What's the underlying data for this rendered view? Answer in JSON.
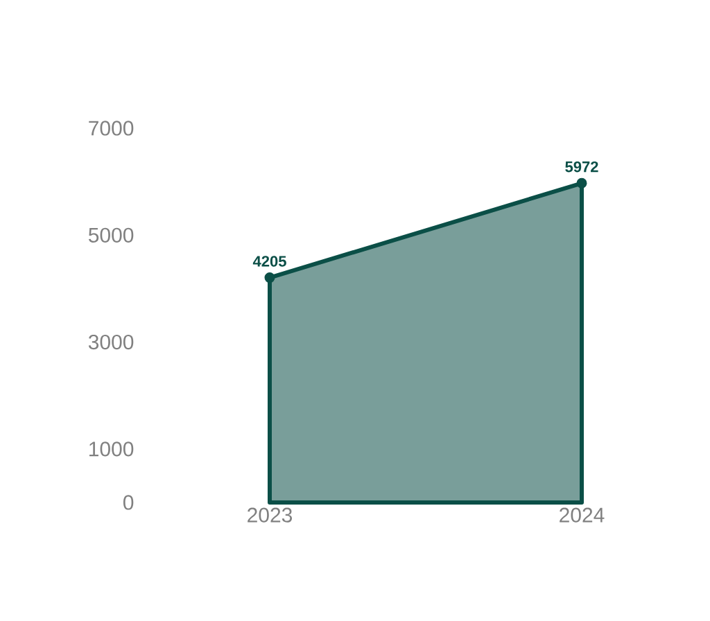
{
  "chart_data": {
    "type": "area",
    "categories": [
      "2023",
      "2024"
    ],
    "values": [
      4205,
      5972
    ],
    "color": "#0b4f47",
    "ylim": [
      0,
      7000
    ],
    "yticks": [
      0,
      1000,
      3000,
      5000,
      7000
    ],
    "data_labels": true,
    "marker": "circle"
  }
}
